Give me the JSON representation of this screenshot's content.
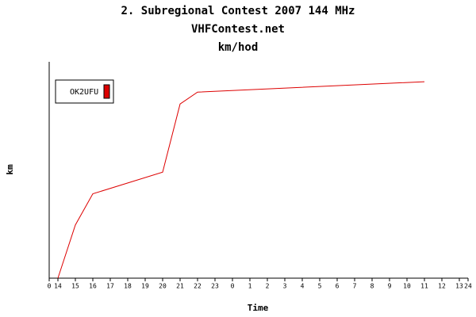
{
  "chart_data": {
    "type": "line",
    "title": "2. Subregional Contest 2007 144 MHz",
    "subtitle": "VHFContest.net",
    "subtitle2": "km/hod",
    "xlabel": "Time",
    "ylabel": "km",
    "xlim": [
      0,
      24
    ],
    "ylim": [
      0,
      100
    ],
    "xticks": [
      0,
      {
        "value": 0.5,
        "label": "14"
      },
      {
        "value": 1.5,
        "label": "15"
      },
      {
        "value": 2.5,
        "label": "16"
      },
      {
        "value": 3.5,
        "label": "17"
      },
      {
        "value": 4.5,
        "label": "18"
      },
      {
        "value": 5.5,
        "label": "19"
      },
      {
        "value": 6.5,
        "label": "20"
      },
      {
        "value": 7.5,
        "label": "21"
      },
      {
        "value": 8.5,
        "label": "22"
      },
      {
        "value": 9.5,
        "label": "23"
      },
      {
        "value": 10.5,
        "label": "0"
      },
      {
        "value": 11.5,
        "label": "1"
      },
      {
        "value": 12.5,
        "label": "2"
      },
      {
        "value": 13.5,
        "label": "3"
      },
      {
        "value": 14.5,
        "label": "4"
      },
      {
        "value": 15.5,
        "label": "5"
      },
      {
        "value": 16.5,
        "label": "6"
      },
      {
        "value": 17.5,
        "label": "7"
      },
      {
        "value": 18.5,
        "label": "8"
      },
      {
        "value": 19.5,
        "label": "9"
      },
      {
        "value": 20.5,
        "label": "10"
      },
      {
        "value": 21.5,
        "label": "11"
      },
      {
        "value": 22.5,
        "label": "12"
      },
      {
        "value": 23.5,
        "label": "13"
      },
      24
    ],
    "x": [
      0.5,
      1.5,
      2.5,
      6.5,
      7.5,
      8.5,
      21.5
    ],
    "series": [
      {
        "name": "OK2UFU",
        "color": "#dd0000",
        "values": [
          0,
          24.6,
          39,
          49,
          80.5,
          86,
          90.8
        ]
      }
    ]
  }
}
